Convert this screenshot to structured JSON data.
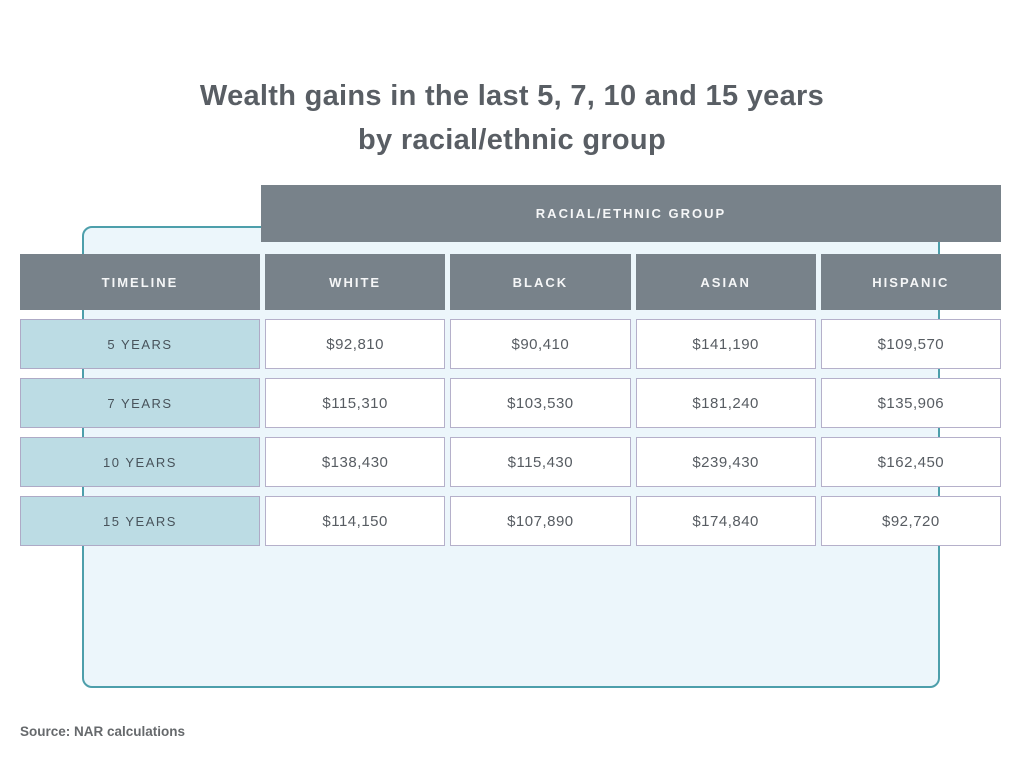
{
  "title": {
    "line1": "Wealth gains in the last 5, 7, 10 and 15 years",
    "line2": "by racial/ethnic group"
  },
  "table": {
    "group_header": "RACIAL/ETHNIC GROUP",
    "columns": [
      "TIMELINE",
      "WHITE",
      "BLACK",
      "ASIAN",
      "HISPANIC"
    ],
    "rows": [
      {
        "timeline": "5 YEARS",
        "white": "$92,810",
        "black": "$90,410",
        "asian": "$141,190",
        "hispanic": "$109,570"
      },
      {
        "timeline": "7 YEARS",
        "white": "$115,310",
        "black": "$103,530",
        "asian": "$181,240",
        "hispanic": "$135,906"
      },
      {
        "timeline": "10 YEARS",
        "white": "$138,430",
        "black": "$115,430",
        "asian": "$239,430",
        "hispanic": "$162,450"
      },
      {
        "timeline": "15 YEARS",
        "white": "$114,150",
        "black": "$107,890",
        "asian": "$174,840",
        "hispanic": "$92,720"
      }
    ]
  },
  "source": "Source: NAR calculations",
  "colors": {
    "header_gray": "#78828a",
    "timeline_cell_blue": "#bcdce4",
    "panel_fill": "#ecf6fb",
    "panel_border_teal": "#4d9fab",
    "cell_border_lavender": "#b5b0ca",
    "title_text": "#595e64",
    "value_text": "#575c62"
  },
  "chart_data": {
    "type": "table",
    "title": "Wealth gains in the last 5, 7, 10 and 15 years by racial/ethnic group",
    "categories": [
      "5 YEARS",
      "7 YEARS",
      "10 YEARS",
      "15 YEARS"
    ],
    "series": [
      {
        "name": "WHITE",
        "values": [
          92810,
          115310,
          138430,
          114150
        ]
      },
      {
        "name": "BLACK",
        "values": [
          90410,
          103530,
          115430,
          107890
        ]
      },
      {
        "name": "ASIAN",
        "values": [
          141190,
          181240,
          239430,
          174840
        ]
      },
      {
        "name": "HISPANIC",
        "values": [
          109570,
          135906,
          162450,
          92720
        ]
      }
    ],
    "row_axis_label": "TIMELINE",
    "column_group_label": "RACIAL/ETHNIC GROUP",
    "source": "Source: NAR calculations"
  }
}
